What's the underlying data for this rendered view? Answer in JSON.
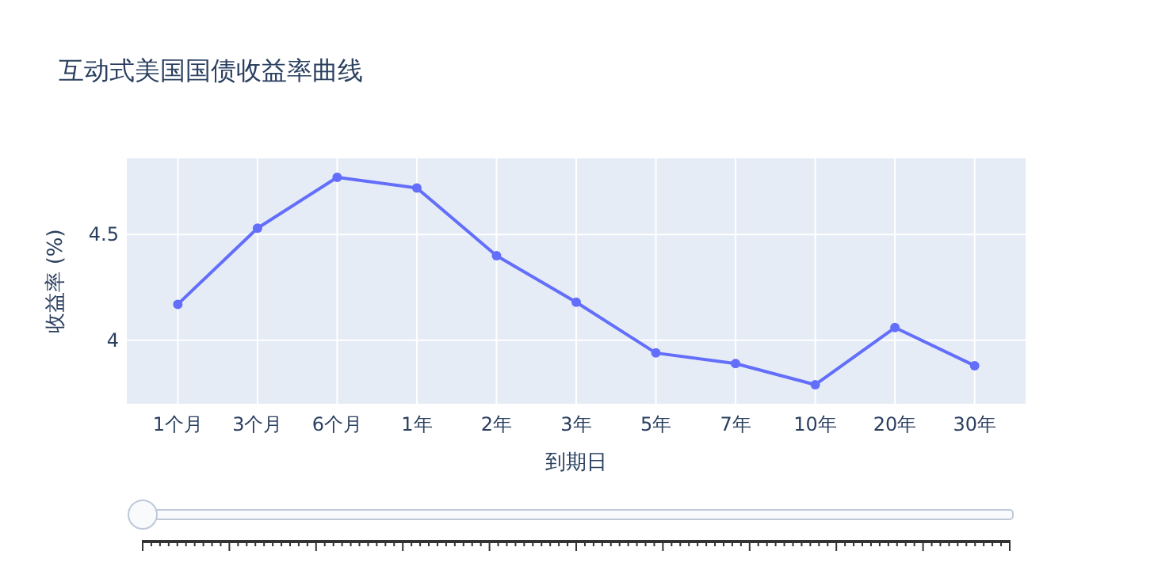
{
  "chart_data": {
    "type": "line",
    "title": "互动式美国国债收益率曲线",
    "xlabel": "到期日",
    "ylabel": "收益率 (%)",
    "categories": [
      "1个月",
      "3个月",
      "6个月",
      "1年",
      "2年",
      "3年",
      "5年",
      "7年",
      "10年",
      "20年",
      "30年"
    ],
    "series": [
      {
        "color": "#636efa",
        "values": [
          4.17,
          4.53,
          4.77,
          4.72,
          4.4,
          4.18,
          3.94,
          3.89,
          3.79,
          4.06,
          3.88
        ]
      }
    ],
    "ylim": [
      3.7,
      4.86
    ],
    "yticks": [
      4,
      4.5
    ],
    "grid": true,
    "marker": "circle",
    "line_style": "solid"
  }
}
